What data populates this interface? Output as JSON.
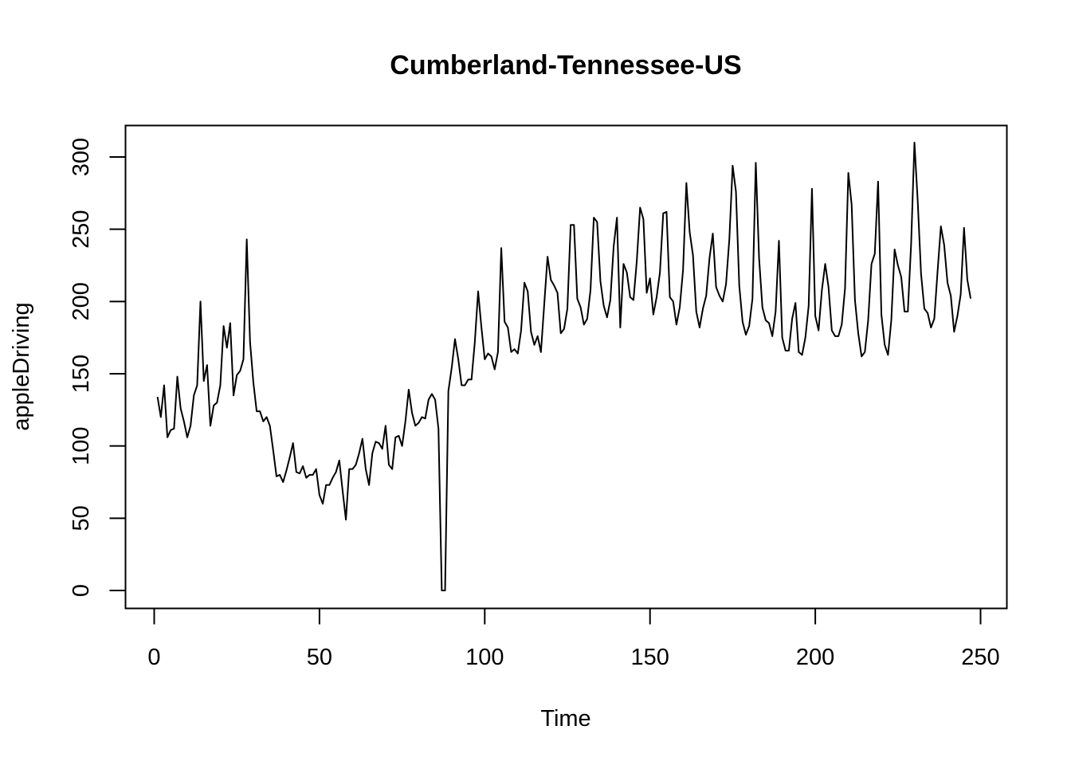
{
  "chart_data": {
    "type": "line",
    "title": "Cumberland-Tennessee-US",
    "xlabel": "Time",
    "ylabel": "appleDriving",
    "xlim": [
      1,
      248
    ],
    "ylim": [
      0,
      310
    ],
    "xticks": [
      0,
      50,
      100,
      150,
      200,
      250
    ],
    "yticks": [
      0,
      50,
      100,
      150,
      200,
      250,
      300
    ],
    "xtick_labels": [
      "0",
      "50",
      "100",
      "150",
      "200",
      "250"
    ],
    "ytick_labels": [
      "0",
      "50",
      "100",
      "150",
      "200",
      "250",
      "300"
    ],
    "grid": false,
    "line_color": "#000000",
    "series": [
      {
        "x_start": 1,
        "x_step": 1,
        "values": [
          134,
          120,
          142,
          106,
          111,
          112,
          148,
          126,
          117,
          106,
          114,
          135,
          142,
          200,
          145,
          156,
          114,
          128,
          130,
          142,
          183,
          168,
          185,
          135,
          149,
          152,
          160,
          243,
          172,
          144,
          124,
          124,
          117,
          120,
          114,
          97,
          79,
          80,
          75,
          83,
          92,
          102,
          82,
          81,
          86,
          78,
          80,
          80,
          84,
          66,
          60,
          73,
          73,
          78,
          82,
          90,
          69,
          49,
          84,
          84,
          87,
          95,
          105,
          84,
          73,
          95,
          103,
          102,
          98,
          114,
          87,
          84,
          106,
          107,
          100,
          117,
          139,
          123,
          114,
          116,
          120,
          119,
          132,
          136,
          132,
          112,
          0,
          0,
          138,
          154,
          174,
          160,
          142,
          142,
          146,
          146,
          172,
          207,
          182,
          160,
          164,
          162,
          153,
          165,
          237,
          186,
          182,
          165,
          167,
          164,
          180,
          213,
          207,
          179,
          170,
          176,
          165,
          198,
          231,
          215,
          211,
          206,
          178,
          181,
          195,
          253,
          253,
          202,
          196,
          184,
          188,
          208,
          258,
          255,
          214,
          197,
          189,
          201,
          238,
          258,
          182,
          226,
          220,
          203,
          201,
          228,
          265,
          257,
          206,
          216,
          191,
          203,
          220,
          261,
          262,
          203,
          200,
          184,
          196,
          222,
          282,
          248,
          232,
          193,
          182,
          195,
          204,
          230,
          247,
          210,
          204,
          200,
          212,
          243,
          294,
          276,
          211,
          186,
          177,
          183,
          202,
          296,
          230,
          196,
          187,
          185,
          176,
          193,
          242,
          175,
          166,
          166,
          188,
          199,
          165,
          163,
          175,
          197,
          278,
          190,
          180,
          208,
          226,
          210,
          180,
          176,
          176,
          184,
          209,
          289,
          267,
          201,
          178,
          162,
          165,
          187,
          226,
          233,
          283,
          191,
          170,
          163,
          187,
          236,
          225,
          217,
          193,
          193,
          240,
          310,
          269,
          219,
          195,
          192,
          182,
          188,
          221,
          252,
          239,
          213,
          204,
          179,
          190,
          205,
          251,
          215,
          202
        ]
      }
    ]
  }
}
